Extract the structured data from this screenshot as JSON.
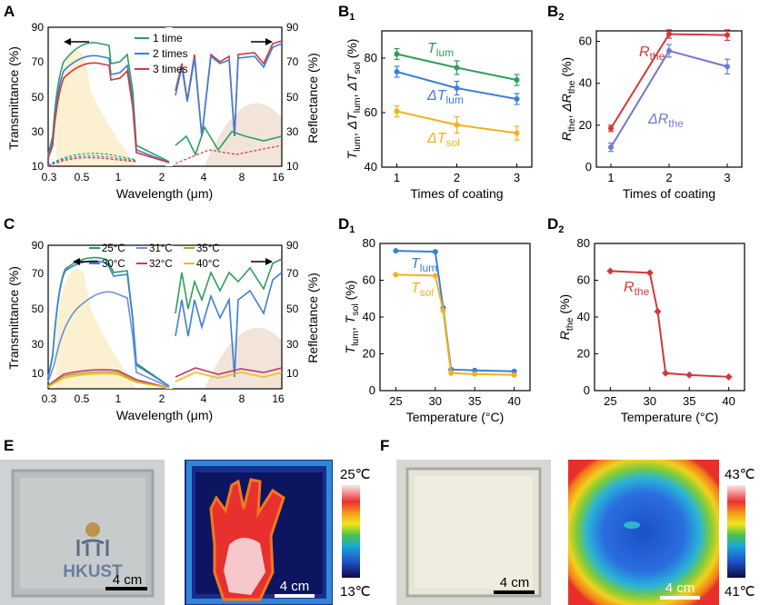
{
  "colors": {
    "c1": "#2e9e5b",
    "c2": "#3b7fd8",
    "c3": "#d4383a",
    "tlum": "#2e9e5b",
    "dtlum": "#3b7fd8",
    "dtsol": "#f2b21a",
    "rthe": "#d4383a",
    "drthe": "#6f7ad0",
    "t25": "#2e9e5b",
    "t30": "#3b7fd8",
    "t31": "#6a8fd8",
    "t32": "#c0396a",
    "t35": "#b3a036",
    "t40": "#e8c21a",
    "solar_fill": "#fbf0d0",
    "thermal_fill": "#f2e4d8"
  },
  "panels": {
    "A": "A",
    "B1": "B",
    "B1s": "1",
    "B2": "B",
    "B2s": "2",
    "C": "C",
    "D1": "D",
    "D1s": "1",
    "D2": "D",
    "D2s": "2",
    "E": "E",
    "F": "F"
  },
  "spectra": {
    "ylabel_left": "Transmittance (%)",
    "ylabel_right": "Reflectance (%)",
    "xlabel": "Wavelength (μm)",
    "x_ticks": [
      "0.3",
      "0.5",
      "1",
      "2",
      "4",
      "8",
      "16"
    ],
    "y_ticks": [
      "10",
      "30",
      "50",
      "70",
      "90"
    ],
    "A_legend": [
      "1 time",
      "2 times",
      "3 times"
    ],
    "C_legend": [
      "25°C",
      "31°C",
      "35°C",
      "30°C",
      "32°C",
      "40°C"
    ]
  },
  "chart_data": [
    {
      "panel": "B1",
      "type": "line",
      "xlabel": "Times of coating",
      "ylabel": "T_lum, ΔT_lum, ΔT_sol (%)",
      "categories": [
        1,
        2,
        3
      ],
      "ylim": [
        40,
        90
      ],
      "y_ticks": [
        40,
        60,
        80
      ],
      "series": [
        {
          "name": "T_lum",
          "values": [
            81.5,
            76.5,
            72
          ],
          "err": [
            2,
            2.5,
            2
          ]
        },
        {
          "name": "ΔT_lum",
          "values": [
            75,
            69,
            65
          ],
          "err": [
            2,
            2.5,
            2
          ]
        },
        {
          "name": "ΔT_sol",
          "values": [
            60.5,
            55.5,
            52.5
          ],
          "err": [
            2,
            3,
            2.5
          ]
        }
      ]
    },
    {
      "panel": "B2",
      "type": "line",
      "xlabel": "Times of coating",
      "ylabel": "R_the, ΔR_the (%)",
      "categories": [
        1,
        2,
        3
      ],
      "ylim": [
        0,
        65
      ],
      "y_ticks": [
        0,
        20,
        40,
        60
      ],
      "series": [
        {
          "name": "R_the",
          "values": [
            18.5,
            63.5,
            63
          ],
          "err": [
            1.5,
            2,
            2.5
          ]
        },
        {
          "name": "ΔR_the",
          "values": [
            9.5,
            55.5,
            48
          ],
          "err": [
            2,
            3,
            3.5
          ]
        }
      ]
    },
    {
      "panel": "D1",
      "type": "line",
      "xlabel": "Temperature (°C)",
      "ylabel": "T_lum, T_sol (%)",
      "x": [
        25,
        30,
        31,
        32,
        35,
        40
      ],
      "xlim": [
        23,
        42
      ],
      "x_ticks": [
        25,
        30,
        35,
        40
      ],
      "ylim": [
        0,
        80
      ],
      "y_ticks": [
        0,
        20,
        40,
        60,
        80
      ],
      "series": [
        {
          "name": "T_lum",
          "values": [
            76,
            75.5,
            45,
            11.5,
            11,
            10.5
          ]
        },
        {
          "name": "T_sol",
          "values": [
            63,
            62.5,
            43.5,
            9.5,
            9,
            8.5
          ]
        }
      ]
    },
    {
      "panel": "D2",
      "type": "line",
      "xlabel": "Temperature (°C)",
      "ylabel": "R_the (%)",
      "x": [
        25,
        30,
        31,
        32,
        35,
        40
      ],
      "xlim": [
        23,
        42
      ],
      "x_ticks": [
        25,
        30,
        35,
        40
      ],
      "ylim": [
        0,
        80
      ],
      "y_ticks": [
        0,
        20,
        40,
        60,
        80
      ],
      "series": [
        {
          "name": "R_the",
          "values": [
            65,
            64,
            43,
            9.5,
            8.5,
            7.5
          ]
        }
      ]
    }
  ],
  "photos": {
    "E_logo": "HKUST",
    "E_scale": "4 cm",
    "E_ir_scale": "4 cm",
    "E_cbar_top": "25℃",
    "E_cbar_bottom": "13℃",
    "F_scale": "4 cm",
    "F_ir_scale": "4 cm",
    "F_cbar_top": "43℃",
    "F_cbar_bottom": "41℃"
  }
}
